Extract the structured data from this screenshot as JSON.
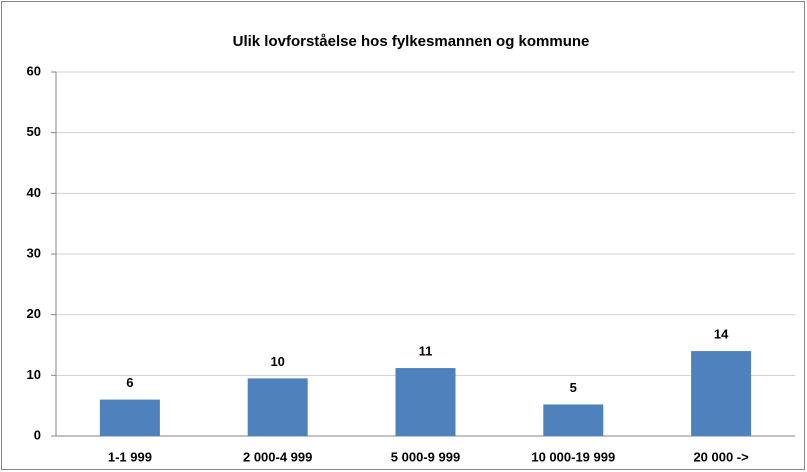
{
  "chart_data": {
    "type": "bar",
    "title": "Ulik lovforståelse hos fylkesmannen og kommune",
    "categories": [
      "1-1 999",
      "2 000-4 999",
      "5 000-9 999",
      "10 000-19 999",
      "20 000 ->"
    ],
    "values": [
      6,
      9.5,
      11.2,
      5.2,
      14
    ],
    "value_labels": [
      "6",
      "10",
      "11",
      "5",
      "14"
    ],
    "color": "#4f81bd",
    "ylim": [
      0,
      60
    ],
    "yticks": [
      0,
      10,
      20,
      30,
      40,
      50,
      60
    ],
    "grid": true
  }
}
